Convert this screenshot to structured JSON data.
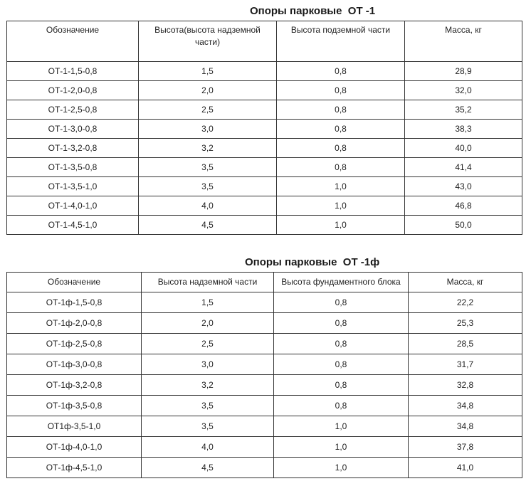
{
  "table1": {
    "title": "Опоры парковые  ОТ -1",
    "headers": [
      "Обозначение",
      "Высота(высота надземной части)",
      "Высота подземной части",
      "Масса, кг"
    ],
    "rows": [
      [
        "ОТ-1-1,5-0,8",
        "1,5",
        "0,8",
        "28,9"
      ],
      [
        "ОТ-1-2,0-0,8",
        "2,0",
        "0,8",
        "32,0"
      ],
      [
        "ОТ-1-2,5-0,8",
        "2,5",
        "0,8",
        "35,2"
      ],
      [
        "ОТ-1-3,0-0,8",
        "3,0",
        "0,8",
        "38,3"
      ],
      [
        "ОТ-1-3,2-0,8",
        "3,2",
        "0,8",
        "40,0"
      ],
      [
        "ОТ-1-3,5-0,8",
        "3,5",
        "0,8",
        "41,4"
      ],
      [
        "ОТ-1-3,5-1,0",
        "3,5",
        "1,0",
        "43,0"
      ],
      [
        "ОТ-1-4,0-1,0",
        "4,0",
        "1,0",
        "46,8"
      ],
      [
        "ОТ-1-4,5-1,0",
        "4,5",
        "1,0",
        "50,0"
      ]
    ]
  },
  "table2": {
    "title": "Опоры парковые  ОТ -1ф",
    "headers": [
      "Обозначение",
      "Высота надземной части",
      "Высота фундаментного блока",
      "Масса, кг"
    ],
    "rows": [
      [
        "ОТ-1ф-1,5-0,8",
        "1,5",
        "0,8",
        "22,2"
      ],
      [
        "ОТ-1ф-2,0-0,8",
        "2,0",
        "0,8",
        "25,3"
      ],
      [
        "ОТ-1ф-2,5-0,8",
        "2,5",
        "0,8",
        "28,5"
      ],
      [
        "ОТ-1ф-3,0-0,8",
        "3,0",
        "0,8",
        "31,7"
      ],
      [
        "ОТ-1ф-3,2-0,8",
        "3,2",
        "0,8",
        "32,8"
      ],
      [
        "ОТ-1ф-3,5-0,8",
        "3,5",
        "0,8",
        "34,8"
      ],
      [
        "ОТ1ф-3,5-1,0",
        "3,5",
        "1,0",
        "34,8"
      ],
      [
        "ОТ-1ф-4,0-1,0",
        "4,0",
        "1,0",
        "37,8"
      ],
      [
        "ОТ-1ф-4,5-1,0",
        "4,5",
        "1,0",
        "41,0"
      ]
    ]
  }
}
